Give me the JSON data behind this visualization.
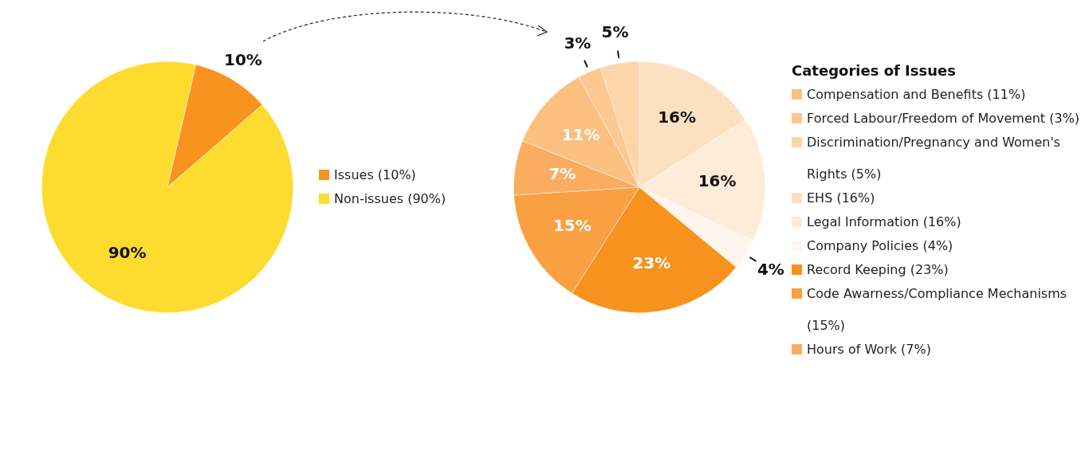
{
  "chart_data": [
    {
      "type": "pie",
      "categories": [
        "Issues (10%)",
        "Non-issues (90%)"
      ],
      "values": [
        10,
        90
      ],
      "colors": [
        "#f7931e",
        "#fedb2f"
      ],
      "value_labels": [
        "10%",
        "90%"
      ],
      "legend": "right"
    },
    {
      "type": "pie",
      "legend_title": "Categories of Issues",
      "categories": [
        "Compensation and Benefits (11%)",
        "Forced Labour/Freedom of Movement (3%)",
        "Discrimination/Pregnancy and Women's Rights (5%)",
        "EHS (16%)",
        "Legal Information (16%)",
        "Company Policies (4%)",
        "Record Keeping (23%)",
        "Code Awarness/Compliance Mechanisms (15%)",
        "Hours of Work (7%)"
      ],
      "values": [
        11,
        3,
        5,
        16,
        16,
        4,
        23,
        15,
        7
      ],
      "colors": [
        "#fbbf80",
        "#fcc791",
        "#fdd5a8",
        "#fde0c0",
        "#feebd8",
        "#fff5ec",
        "#f7921e",
        "#f9a042",
        "#faad60"
      ],
      "value_labels": [
        "11%",
        "3%",
        "5%",
        "16%",
        "16%",
        "4%",
        "23%",
        "15%",
        "7%"
      ],
      "legend": "right"
    }
  ]
}
